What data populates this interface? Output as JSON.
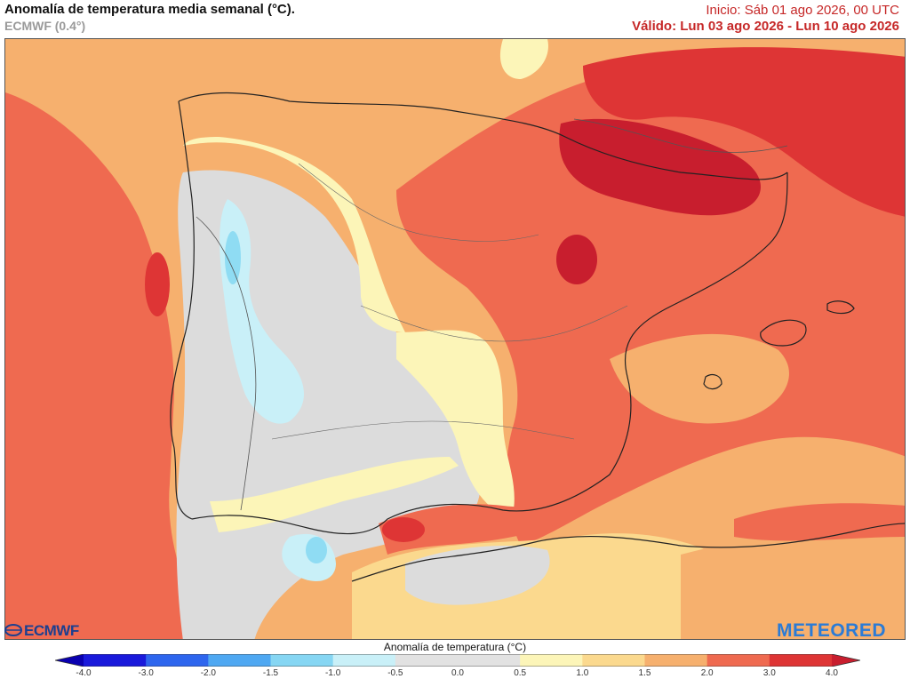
{
  "header": {
    "title": "Anomalía de temperatura media semanal (°C).",
    "model": "ECMWF (0.4°)",
    "init": "Inicio: Sáb 01 ago 2026, 00 UTC",
    "valid": "Válido: Lun 03 ago 2026 - Lun 10 ago 2026"
  },
  "logos": {
    "left": "ECMWF",
    "right": "METEORED"
  },
  "legend": {
    "title": "Anomalía de temperatura (°C)",
    "ticks": [
      "-4.0",
      "-3.0",
      "-2.0",
      "-1.5",
      "-1.0",
      "-0.5",
      "0.0",
      "0.5",
      "1.0",
      "1.5",
      "2.0",
      "3.0",
      "4.0"
    ],
    "colors": [
      "#1a1adb",
      "#2e66ee",
      "#4fa8f2",
      "#86d6f3",
      "#c9f0f8",
      "#e2e2e2",
      "#e2e2e2",
      "#fcf5b8",
      "#fbd98e",
      "#f6b06e",
      "#ef6a50",
      "#de3535"
    ]
  },
  "map": {
    "region": "Península Ibérica y Baleares",
    "palette": {
      "cold_light": "#c9f0f8",
      "cold": "#8fdcf3",
      "neutral": "#dcdcdc",
      "warm_light": "#fcf5b8",
      "warm": "#fbd98e",
      "warm_mid": "#f6b06e",
      "hot": "#ef6a50",
      "very_hot": "#de3535",
      "extreme": "#c81e2e"
    }
  }
}
